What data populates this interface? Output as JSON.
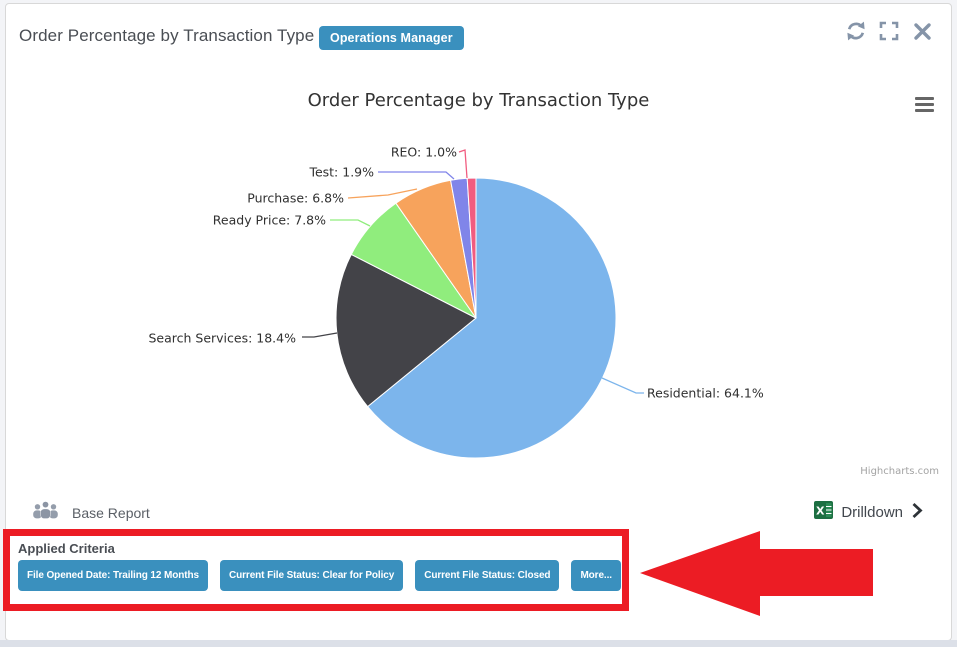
{
  "header": {
    "title": "Order Percentage by Transaction Type",
    "badge": "Operations Manager",
    "icons": [
      "refresh-icon",
      "fullscreen-icon",
      "close-icon"
    ]
  },
  "chart_data": {
    "type": "pie",
    "title": "Order Percentage by Transaction Type",
    "slices": [
      {
        "label": "Residential",
        "value": 64.1,
        "color": "#7cb5ec"
      },
      {
        "label": "Search Services",
        "value": 18.4,
        "color": "#434348"
      },
      {
        "label": "Ready Price",
        "value": 7.8,
        "color": "#90ed7d"
      },
      {
        "label": "Purchase",
        "value": 6.8,
        "color": "#f7a35c"
      },
      {
        "label": "Test",
        "value": 1.9,
        "color": "#8085e9"
      },
      {
        "label": "REO",
        "value": 1.0,
        "color": "#f15c80"
      }
    ],
    "label_format": "{label}: {value}%",
    "start_angle": 0,
    "legend": "none",
    "credits": "Highcharts.com",
    "menu_icon": "hamburger-menu-icon"
  },
  "footer": {
    "base_report_label": "Base Report",
    "base_report_icon": "users-icon",
    "drilldown_label": "Drilldown",
    "drilldown_icons": [
      "excel-icon",
      "chevron-right-icon"
    ]
  },
  "criteria": {
    "heading": "Applied Criteria",
    "buttons": [
      "File Opened Date: Trailing 12 Months",
      "Current File Status: Clear for Policy",
      "Current File Status: Closed",
      "More..."
    ]
  },
  "colors": {
    "badge_bg": "#3a90be",
    "criteria_button_bg": "#3a90be",
    "annotation_red": "#ec1c24",
    "icon_gray": "#8594a8"
  }
}
